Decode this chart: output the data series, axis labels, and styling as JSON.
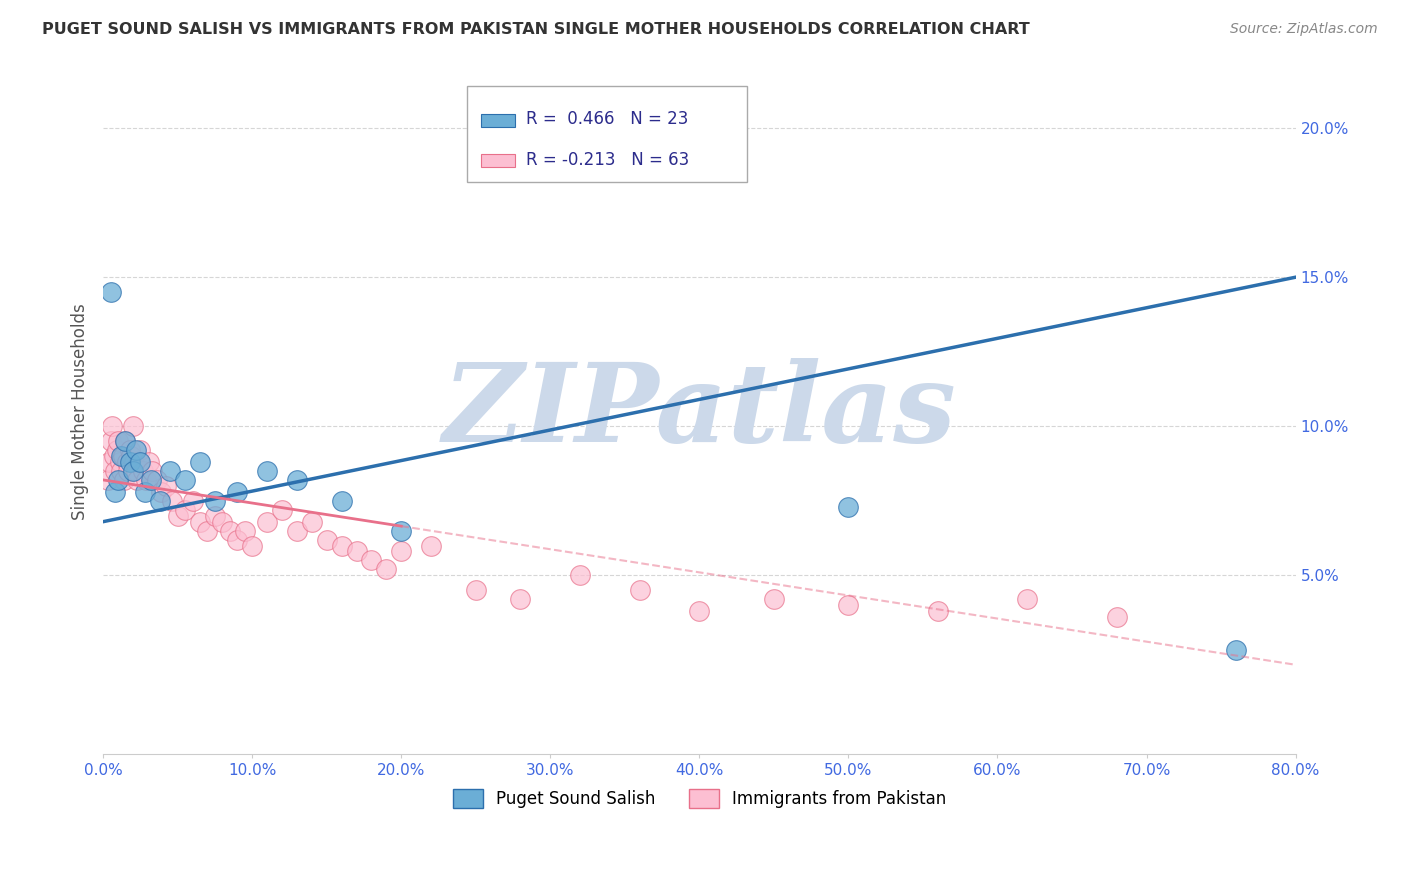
{
  "title": "PUGET SOUND SALISH VS IMMIGRANTS FROM PAKISTAN SINGLE MOTHER HOUSEHOLDS CORRELATION CHART",
  "source": "Source: ZipAtlas.com",
  "ylabel": "Single Mother Households",
  "xlim": [
    0.0,
    0.8
  ],
  "ylim": [
    -0.01,
    0.22
  ],
  "xticks": [
    0.0,
    0.1,
    0.2,
    0.3,
    0.4,
    0.5,
    0.6,
    0.7,
    0.8
  ],
  "xticklabels": [
    "0.0%",
    "10.0%",
    "20.0%",
    "30.0%",
    "40.0%",
    "50.0%",
    "60.0%",
    "70.0%",
    "80.0%"
  ],
  "yticks": [
    0.05,
    0.1,
    0.15,
    0.2
  ],
  "yticklabels": [
    "5.0%",
    "10.0%",
    "15.0%",
    "20.0%"
  ],
  "blue_R": 0.466,
  "blue_N": 23,
  "pink_R": -0.213,
  "pink_N": 63,
  "blue_color": "#6baed6",
  "pink_color": "#fcbfd2",
  "blue_line_color": "#2c6fad",
  "pink_line_color": "#e8708a",
  "watermark_text": "ZIPatlas",
  "watermark_color": "#ccd9ea",
  "legend_label_blue": "Puget Sound Salish",
  "legend_label_pink": "Immigrants from Pakistan",
  "blue_scatter_x": [
    0.005,
    0.008,
    0.01,
    0.012,
    0.015,
    0.018,
    0.02,
    0.022,
    0.025,
    0.028,
    0.032,
    0.038,
    0.045,
    0.055,
    0.065,
    0.075,
    0.09,
    0.11,
    0.13,
    0.16,
    0.2,
    0.5,
    0.76
  ],
  "blue_scatter_y": [
    0.145,
    0.078,
    0.082,
    0.09,
    0.095,
    0.088,
    0.085,
    0.092,
    0.088,
    0.078,
    0.082,
    0.075,
    0.085,
    0.082,
    0.088,
    0.075,
    0.078,
    0.085,
    0.082,
    0.075,
    0.065,
    0.073,
    0.025
  ],
  "pink_scatter_x": [
    0.003,
    0.004,
    0.005,
    0.006,
    0.007,
    0.008,
    0.009,
    0.01,
    0.011,
    0.012,
    0.013,
    0.014,
    0.015,
    0.016,
    0.017,
    0.018,
    0.019,
    0.02,
    0.021,
    0.022,
    0.023,
    0.024,
    0.025,
    0.027,
    0.029,
    0.031,
    0.033,
    0.036,
    0.039,
    0.042,
    0.046,
    0.05,
    0.055,
    0.06,
    0.065,
    0.07,
    0.075,
    0.08,
    0.085,
    0.09,
    0.095,
    0.1,
    0.11,
    0.12,
    0.13,
    0.14,
    0.15,
    0.16,
    0.17,
    0.18,
    0.19,
    0.2,
    0.22,
    0.25,
    0.28,
    0.32,
    0.36,
    0.4,
    0.45,
    0.5,
    0.56,
    0.62,
    0.68
  ],
  "pink_scatter_y": [
    0.082,
    0.088,
    0.095,
    0.1,
    0.09,
    0.085,
    0.092,
    0.095,
    0.088,
    0.085,
    0.09,
    0.082,
    0.095,
    0.088,
    0.085,
    0.092,
    0.09,
    0.1,
    0.088,
    0.085,
    0.082,
    0.088,
    0.092,
    0.085,
    0.082,
    0.088,
    0.085,
    0.082,
    0.078,
    0.08,
    0.075,
    0.07,
    0.072,
    0.075,
    0.068,
    0.065,
    0.07,
    0.068,
    0.065,
    0.062,
    0.065,
    0.06,
    0.068,
    0.072,
    0.065,
    0.068,
    0.062,
    0.06,
    0.058,
    0.055,
    0.052,
    0.058,
    0.06,
    0.045,
    0.042,
    0.05,
    0.045,
    0.038,
    0.042,
    0.04,
    0.038,
    0.042,
    0.036
  ],
  "blue_trend_x0": 0.0,
  "blue_trend_y0": 0.068,
  "blue_trend_x1": 0.8,
  "blue_trend_y1": 0.15,
  "pink_trend_x0": 0.0,
  "pink_trend_y0": 0.082,
  "pink_trend_x1": 0.8,
  "pink_trend_y1": 0.02,
  "background_color": "#ffffff",
  "grid_color": "#cccccc",
  "title_color": "#333333",
  "axis_label_color": "#555555",
  "tick_color": "#4169E1"
}
